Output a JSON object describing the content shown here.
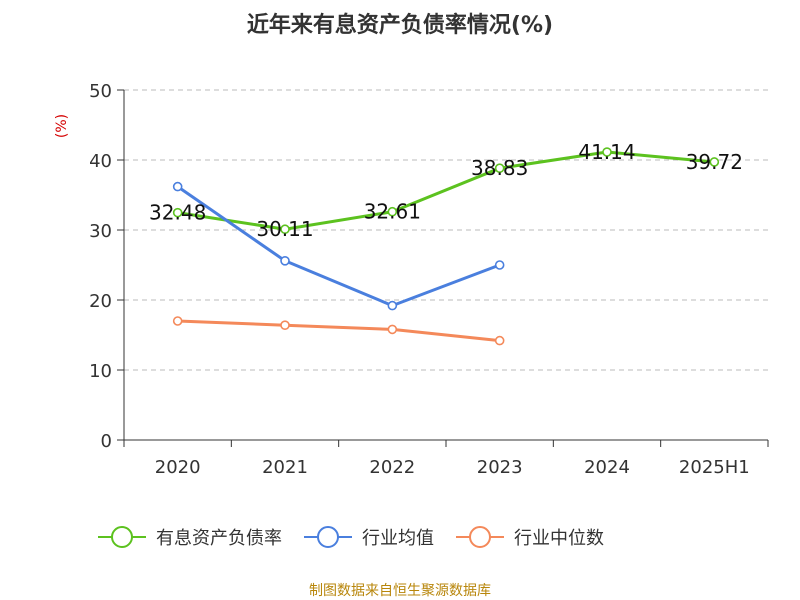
{
  "chart_data": {
    "type": "line",
    "title": "近年来有息资产负债率情况(%)",
    "ylabel": "(%)",
    "xlabel": "",
    "categories": [
      "2020",
      "2021",
      "2022",
      "2023",
      "2024",
      "2025H1"
    ],
    "ylim": [
      0,
      50
    ],
    "yticks": [
      0,
      10,
      20,
      30,
      40,
      50
    ],
    "grid": "horizontal dashed",
    "legend_position": "bottom",
    "series": [
      {
        "name": "有息资产负债率",
        "color": "#5cc21f",
        "values": [
          32.48,
          30.11,
          32.61,
          38.83,
          41.14,
          39.72
        ],
        "labels": [
          "32.48",
          "30.11",
          "32.61",
          "38.83",
          "41.14",
          "39.72"
        ]
      },
      {
        "name": "行业均值",
        "color": "#4a7fde",
        "values": [
          36.2,
          25.6,
          19.2,
          25.0,
          null,
          null
        ]
      },
      {
        "name": "行业中位数",
        "color": "#f4895a",
        "values": [
          17.0,
          16.4,
          15.8,
          14.2,
          null,
          null
        ]
      }
    ],
    "source": "制图数据来自恒生聚源数据库"
  }
}
